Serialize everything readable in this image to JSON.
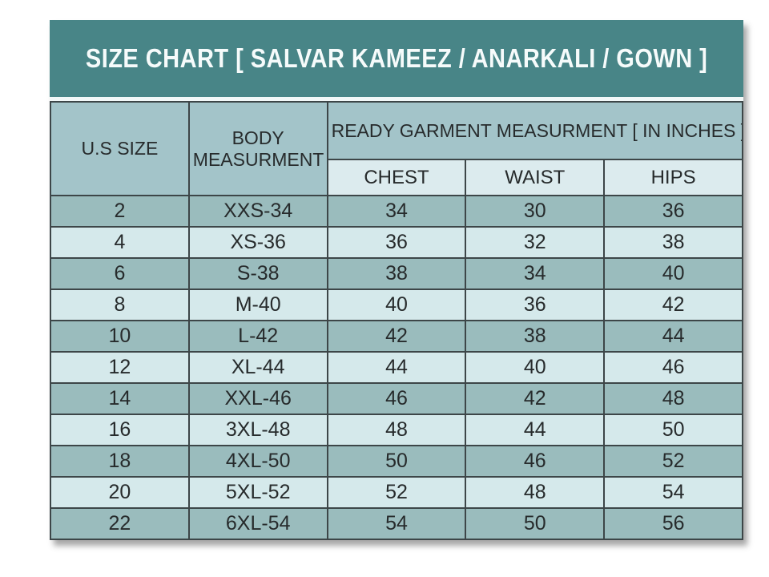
{
  "title": "SIZE CHART [ SALVAR KAMEEZ / ANARKALI / GOWN ]",
  "table": {
    "col1_header": "U.S SIZE",
    "col2_header": "BODY MEASURMENT",
    "group_header": "READY GARMENT MEASURMENT [ IN INCHES ]",
    "sub_headers": [
      "CHEST",
      "WAIST",
      "HIPS"
    ],
    "rows": [
      [
        "2",
        "XXS-34",
        "34",
        "30",
        "36"
      ],
      [
        "4",
        "XS-36",
        "36",
        "32",
        "38"
      ],
      [
        "6",
        "S-38",
        "38",
        "34",
        "40"
      ],
      [
        "8",
        "M-40",
        "40",
        "36",
        "42"
      ],
      [
        "10",
        "L-42",
        "42",
        "38",
        "44"
      ],
      [
        "12",
        "XL-44",
        "44",
        "40",
        "46"
      ],
      [
        "14",
        "XXL-46",
        "46",
        "42",
        "48"
      ],
      [
        "16",
        "3XL-48",
        "48",
        "44",
        "50"
      ],
      [
        "18",
        "4XL-50",
        "50",
        "46",
        "52"
      ],
      [
        "20",
        "5XL-52",
        "52",
        "48",
        "54"
      ],
      [
        "22",
        "6XL-54",
        "54",
        "50",
        "56"
      ]
    ]
  },
  "colors": {
    "page_bg": "#ffffff",
    "title_band_bg": "#488587",
    "title_text": "#f6fbfb",
    "header_fill": "#a3c4c9",
    "subheader_fill": "#dcebee",
    "row_dark": "#9abcbd",
    "row_light": "#d5e9eb",
    "border": "#3d4648",
    "cell_text": "#272b2c"
  },
  "chart_data": {
    "type": "table",
    "title": "SIZE CHART [ SALVAR KAMEEZ / ANARKALI / GOWN ]",
    "columns": [
      "U.S SIZE",
      "BODY MEASURMENT",
      "CHEST",
      "WAIST",
      "HIPS"
    ],
    "column_group": {
      "label": "READY GARMENT MEASURMENT [ IN INCHES ]",
      "spans": [
        "CHEST",
        "WAIST",
        "HIPS"
      ]
    },
    "rows": [
      {
        "us_size": "2",
        "body_measurment": "XXS-34",
        "chest": 34,
        "waist": 30,
        "hips": 36
      },
      {
        "us_size": "4",
        "body_measurment": "XS-36",
        "chest": 36,
        "waist": 32,
        "hips": 38
      },
      {
        "us_size": "6",
        "body_measurment": "S-38",
        "chest": 38,
        "waist": 34,
        "hips": 40
      },
      {
        "us_size": "8",
        "body_measurment": "M-40",
        "chest": 40,
        "waist": 36,
        "hips": 42
      },
      {
        "us_size": "10",
        "body_measurment": "L-42",
        "chest": 42,
        "waist": 38,
        "hips": 44
      },
      {
        "us_size": "12",
        "body_measurment": "XL-44",
        "chest": 44,
        "waist": 40,
        "hips": 46
      },
      {
        "us_size": "14",
        "body_measurment": "XXL-46",
        "chest": 46,
        "waist": 42,
        "hips": 48
      },
      {
        "us_size": "16",
        "body_measurment": "3XL-48",
        "chest": 48,
        "waist": 44,
        "hips": 50
      },
      {
        "us_size": "18",
        "body_measurment": "4XL-50",
        "chest": 50,
        "waist": 46,
        "hips": 52
      },
      {
        "us_size": "20",
        "body_measurment": "5XL-52",
        "chest": 52,
        "waist": 48,
        "hips": 54
      },
      {
        "us_size": "22",
        "body_measurment": "6XL-54",
        "chest": 54,
        "waist": 50,
        "hips": 56
      }
    ]
  }
}
